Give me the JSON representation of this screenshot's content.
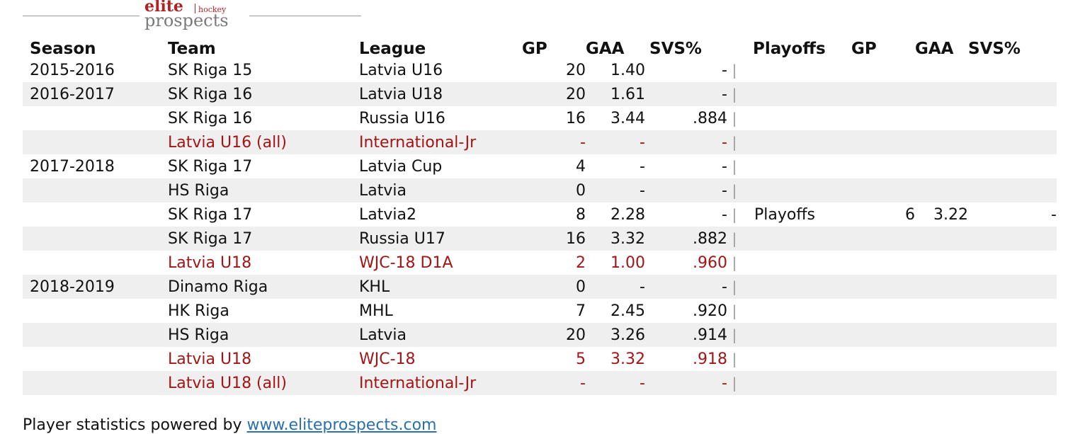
{
  "logo": {
    "elite": "elite",
    "hockey": "hockey",
    "prospects": "prospects"
  },
  "headers": {
    "season": "Season",
    "team": "Team",
    "league": "League",
    "gp": "GP",
    "gaa": "GAA",
    "svs": "SVS%",
    "playoffs": "Playoffs",
    "po_gp": "GP",
    "po_gaa": "GAA",
    "po_svs": "SVS%"
  },
  "divider": "|",
  "rows": [
    {
      "season": "2015-2016",
      "team": "SK Riga 15",
      "league": "Latvia U16",
      "gp": "20",
      "gaa": "1.40",
      "svs": "-",
      "playoffs": "",
      "po_gp": "",
      "po_gaa": "",
      "po_svs": ""
    },
    {
      "season": "2016-2017",
      "team": "SK Riga 16",
      "league": "Latvia U18",
      "gp": "20",
      "gaa": "1.61",
      "svs": "-",
      "playoffs": "",
      "po_gp": "",
      "po_gaa": "",
      "po_svs": ""
    },
    {
      "season": "",
      "team": "SK Riga 16",
      "league": "Russia U16",
      "gp": "16",
      "gaa": "3.44",
      "svs": ".884",
      "playoffs": "",
      "po_gp": "",
      "po_gaa": "",
      "po_svs": ""
    },
    {
      "season": "",
      "team": "Latvia U16 (all)",
      "league": "International-Jr",
      "gp": "-",
      "gaa": "-",
      "svs": "-",
      "playoffs": "",
      "po_gp": "",
      "po_gaa": "",
      "po_svs": ""
    },
    {
      "season": "2017-2018",
      "team": "SK Riga 17",
      "league": "Latvia Cup",
      "gp": "4",
      "gaa": "-",
      "svs": "-",
      "playoffs": "",
      "po_gp": "",
      "po_gaa": "",
      "po_svs": ""
    },
    {
      "season": "",
      "team": "HS Riga",
      "league": "Latvia",
      "gp": "0",
      "gaa": "-",
      "svs": "-",
      "playoffs": "",
      "po_gp": "",
      "po_gaa": "",
      "po_svs": ""
    },
    {
      "season": "",
      "team": "SK Riga 17",
      "league": "Latvia2",
      "gp": "8",
      "gaa": "2.28",
      "svs": "-",
      "playoffs": "Playoffs",
      "po_gp": "6",
      "po_gaa": "3.22",
      "po_svs": "-"
    },
    {
      "season": "",
      "team": "SK Riga 17",
      "league": "Russia U17",
      "gp": "16",
      "gaa": "3.32",
      "svs": ".882",
      "playoffs": "",
      "po_gp": "",
      "po_gaa": "",
      "po_svs": ""
    },
    {
      "season": "",
      "team": "Latvia U18",
      "league": "WJC-18 D1A",
      "gp": "2",
      "gaa": "1.00",
      "svs": ".960",
      "playoffs": "",
      "po_gp": "",
      "po_gaa": "",
      "po_svs": ""
    },
    {
      "season": "2018-2019",
      "team": "Dinamo Riga",
      "league": "KHL",
      "gp": "0",
      "gaa": "-",
      "svs": "-",
      "playoffs": "",
      "po_gp": "",
      "po_gaa": "",
      "po_svs": ""
    },
    {
      "season": "",
      "team": "HK Riga",
      "league": "MHL",
      "gp": "7",
      "gaa": "2.45",
      "svs": ".920",
      "playoffs": "",
      "po_gp": "",
      "po_gaa": "",
      "po_svs": ""
    },
    {
      "season": "",
      "team": "HS Riga",
      "league": "Latvia",
      "gp": "20",
      "gaa": "3.26",
      "svs": ".914",
      "playoffs": "",
      "po_gp": "",
      "po_gaa": "",
      "po_svs": ""
    },
    {
      "season": "",
      "team": "Latvia U18",
      "league": "WJC-18",
      "gp": "5",
      "gaa": "3.32",
      "svs": ".918",
      "playoffs": "",
      "po_gp": "",
      "po_gaa": "",
      "po_svs": ""
    },
    {
      "season": "",
      "team": "Latvia U18 (all)",
      "league": "International-Jr",
      "gp": "-",
      "gaa": "-",
      "svs": "-",
      "playoffs": "",
      "po_gp": "",
      "po_gaa": "",
      "po_svs": ""
    }
  ],
  "footer": {
    "text": "Player statistics powered by ",
    "link": "www.eliteprospects.com"
  },
  "colors": {
    "international_text": "#a31515",
    "row_stripe": "#efefef",
    "link": "#2a6fb0",
    "logo_red": "#b22222",
    "logo_gray": "#7a7a7a"
  }
}
